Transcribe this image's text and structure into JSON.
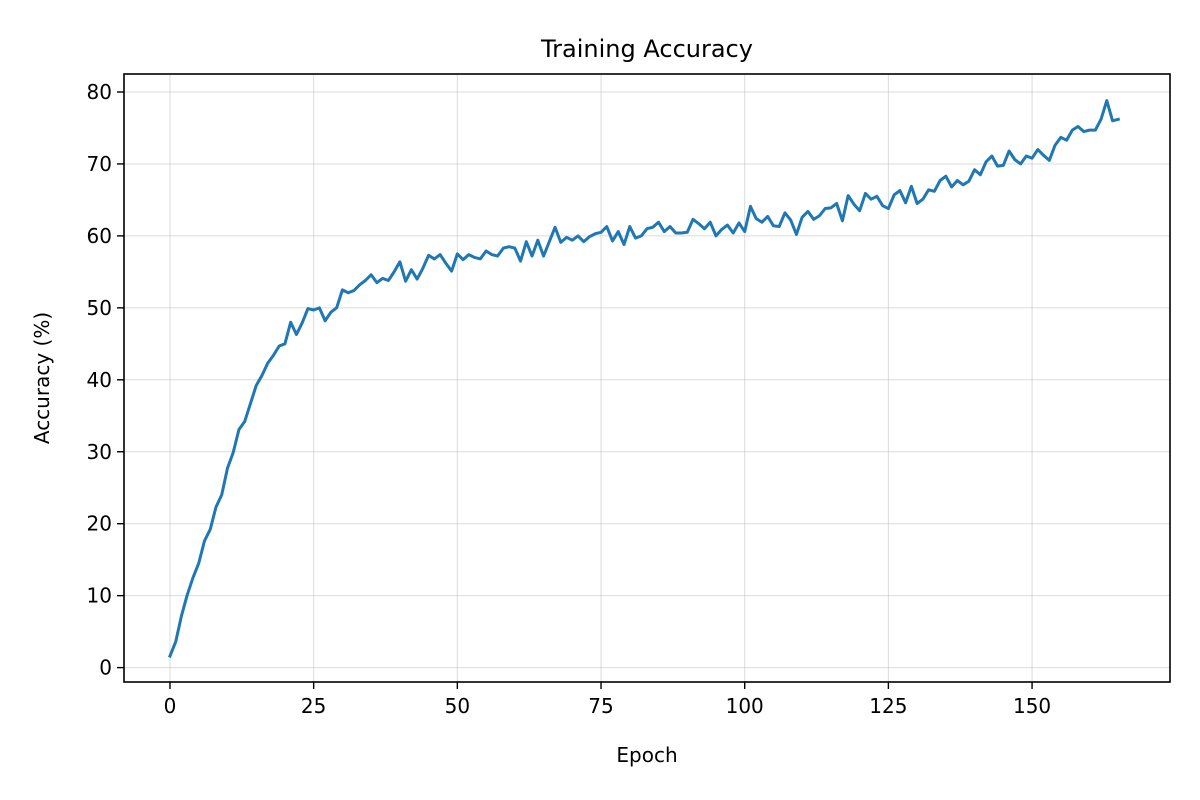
{
  "chart_data": {
    "type": "line",
    "title": "Training Accuracy",
    "xlabel": "Epoch",
    "ylabel": "Accuracy (%)",
    "xlim": [
      -8,
      174
    ],
    "ylim": [
      -2,
      82.5
    ],
    "x_ticks": [
      0,
      25,
      50,
      75,
      100,
      125,
      150
    ],
    "y_ticks": [
      0,
      10,
      20,
      30,
      40,
      50,
      60,
      70,
      80
    ],
    "grid": true,
    "legend": "none",
    "series": [
      {
        "color": "#1f77b4",
        "x": [
          0,
          1,
          2,
          3,
          4,
          5,
          6,
          7,
          8,
          9,
          10,
          11,
          12,
          13,
          14,
          15,
          16,
          17,
          18,
          19,
          20,
          21,
          22,
          23,
          24,
          25,
          26,
          27,
          28,
          29,
          30,
          31,
          32,
          33,
          34,
          35,
          36,
          37,
          38,
          39,
          40,
          41,
          42,
          43,
          44,
          45,
          46,
          47,
          48,
          49,
          50,
          51,
          52,
          53,
          54,
          55,
          56,
          57,
          58,
          59,
          60,
          61,
          62,
          63,
          64,
          65,
          66,
          67,
          68,
          69,
          70,
          71,
          72,
          73,
          74,
          75,
          76,
          77,
          78,
          79,
          80,
          81,
          82,
          83,
          84,
          85,
          86,
          87,
          88,
          89,
          90,
          91,
          92,
          93,
          94,
          95,
          96,
          97,
          98,
          99,
          100,
          101,
          102,
          103,
          104,
          105,
          106,
          107,
          108,
          109,
          110,
          111,
          112,
          113,
          114,
          115,
          116,
          117,
          118,
          119,
          120,
          121,
          122,
          123,
          124,
          125,
          126,
          127,
          128,
          129,
          130,
          131,
          132,
          133,
          134,
          135,
          136,
          137,
          138,
          139,
          140,
          141,
          142,
          143,
          144,
          145,
          146,
          147,
          148,
          149,
          150,
          151,
          152,
          153,
          154,
          155,
          156,
          157,
          158,
          159,
          160,
          161,
          162,
          163,
          164,
          165
        ],
        "y": [
          1.6,
          3.6,
          7.2,
          10.1,
          12.5,
          14.5,
          17.6,
          19.2,
          22.3,
          24.0,
          27.7,
          29.9,
          33.1,
          34.2,
          36.7,
          39.2,
          40.6,
          42.3,
          43.4,
          44.7,
          45.0,
          48.0,
          46.3,
          47.9,
          49.9,
          49.7,
          50.0,
          48.2,
          49.4,
          50.0,
          52.5,
          52.1,
          52.4,
          53.2,
          53.8,
          54.6,
          53.5,
          54.1,
          53.8,
          55.0,
          56.4,
          53.7,
          55.3,
          54.0,
          55.5,
          57.3,
          56.8,
          57.4,
          56.2,
          55.1,
          57.5,
          56.7,
          57.4,
          57.0,
          56.8,
          57.9,
          57.4,
          57.2,
          58.3,
          58.5,
          58.3,
          56.5,
          59.2,
          57.2,
          59.4,
          57.2,
          59.2,
          61.2,
          59.1,
          59.8,
          59.4,
          60.0,
          59.2,
          59.9,
          60.3,
          60.5,
          61.3,
          59.3,
          60.6,
          58.8,
          61.3,
          59.7,
          60.0,
          61.0,
          61.2,
          61.9,
          60.6,
          61.3,
          60.4,
          60.4,
          60.5,
          62.3,
          61.7,
          61.0,
          61.9,
          60.0,
          60.9,
          61.5,
          60.4,
          61.8,
          60.6,
          64.1,
          62.4,
          61.9,
          62.7,
          61.4,
          61.3,
          63.2,
          62.2,
          60.2,
          62.6,
          63.4,
          62.3,
          62.8,
          63.8,
          63.9,
          64.5,
          62.1,
          65.6,
          64.4,
          63.5,
          65.9,
          65.1,
          65.5,
          64.2,
          63.8,
          65.7,
          66.3,
          64.6,
          66.9,
          64.5,
          65.1,
          66.4,
          66.2,
          67.7,
          68.3,
          66.8,
          67.7,
          67.1,
          67.6,
          69.2,
          68.5,
          70.3,
          71.1,
          69.7,
          69.8,
          71.8,
          70.6,
          70.0,
          71.1,
          70.8,
          72.0,
          71.2,
          70.5,
          72.6,
          73.7,
          73.3,
          74.7,
          75.2,
          74.5,
          74.7,
          74.7,
          76.2,
          78.8,
          76.0,
          76.2
        ]
      }
    ]
  }
}
